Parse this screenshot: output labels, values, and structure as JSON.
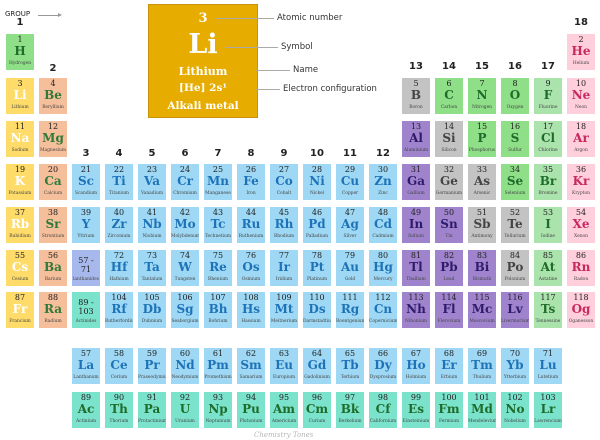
{
  "legend": {
    "group_label": "GROUP",
    "atomic_number": "3",
    "symbol": "Li",
    "name": "Lithium",
    "config": "[He] 2s¹",
    "category": "Alkali metal",
    "callouts": [
      "Atomic number",
      "Symbol",
      "Name",
      "Electron configuration"
    ]
  },
  "watermark": "Chemistry Tones",
  "categories": {
    "alkali": {
      "bg": "#ffdc6a",
      "sym": "#ffffff"
    },
    "alkaline": {
      "bg": "#f6bf9b",
      "sym": "#2f7a3a"
    },
    "transition": {
      "bg": "#9ed8f4",
      "sym": "#1e73b8"
    },
    "post": {
      "bg": "#9f84cd",
      "sym": "#2f1b6b"
    },
    "metalloid": {
      "bg": "#c3c3c3",
      "sym": "#444444"
    },
    "nonmetal": {
      "bg": "#8fdf88",
      "sym": "#1e6b2a"
    },
    "halogen": {
      "bg": "#abe3ad",
      "sym": "#1e6b2a"
    },
    "noble": {
      "bg": "#ffcfdc",
      "sym": "#c8285f"
    },
    "hydrogen": {
      "bg": "#8fdf88",
      "sym": "#1e6b2a"
    },
    "lanthanide": {
      "bg": "#9ed8f4",
      "sym": "#1e73b8"
    },
    "actinide": {
      "bg": "#7be3cc",
      "sym": "#1e6b2a"
    },
    "placeholder": {
      "bg": "#a7b9ec",
      "sym": "#1e3b8a"
    }
  },
  "groups": [
    "1",
    "2",
    "3",
    "4",
    "5",
    "6",
    "7",
    "8",
    "9",
    "10",
    "11",
    "12",
    "13",
    "14",
    "15",
    "16",
    "17",
    "18"
  ],
  "elements": [
    {
      "n": "1",
      "s": "H",
      "nm": "Hydrogen",
      "g": 1,
      "p": 1,
      "c": "hydrogen"
    },
    {
      "n": "2",
      "s": "He",
      "nm": "Helium",
      "g": 18,
      "p": 1,
      "c": "noble"
    },
    {
      "n": "3",
      "s": "Li",
      "nm": "Lithium",
      "g": 1,
      "p": 2,
      "c": "alkali"
    },
    {
      "n": "4",
      "s": "Be",
      "nm": "Beryllium",
      "g": 2,
      "p": 2,
      "c": "alkaline"
    },
    {
      "n": "5",
      "s": "B",
      "nm": "Boron",
      "g": 13,
      "p": 2,
      "c": "metalloid"
    },
    {
      "n": "6",
      "s": "C",
      "nm": "Carbon",
      "g": 14,
      "p": 2,
      "c": "nonmetal"
    },
    {
      "n": "7",
      "s": "N",
      "nm": "Nitrogen",
      "g": 15,
      "p": 2,
      "c": "nonmetal"
    },
    {
      "n": "8",
      "s": "O",
      "nm": "Oxygen",
      "g": 16,
      "p": 2,
      "c": "nonmetal"
    },
    {
      "n": "9",
      "s": "F",
      "nm": "Fluorine",
      "g": 17,
      "p": 2,
      "c": "halogen"
    },
    {
      "n": "10",
      "s": "Ne",
      "nm": "Neon",
      "g": 18,
      "p": 2,
      "c": "noble"
    },
    {
      "n": "11",
      "s": "Na",
      "nm": "Sodium",
      "g": 1,
      "p": 3,
      "c": "alkali"
    },
    {
      "n": "12",
      "s": "Mg",
      "nm": "Magnesium",
      "g": 2,
      "p": 3,
      "c": "alkaline"
    },
    {
      "n": "13",
      "s": "Al",
      "nm": "Aluminium",
      "g": 13,
      "p": 3,
      "c": "post"
    },
    {
      "n": "14",
      "s": "Si",
      "nm": "Silicon",
      "g": 14,
      "p": 3,
      "c": "metalloid"
    },
    {
      "n": "15",
      "s": "P",
      "nm": "Phosphorus",
      "g": 15,
      "p": 3,
      "c": "nonmetal"
    },
    {
      "n": "16",
      "s": "S",
      "nm": "Sulfur",
      "g": 16,
      "p": 3,
      "c": "nonmetal"
    },
    {
      "n": "17",
      "s": "Cl",
      "nm": "Chlorine",
      "g": 17,
      "p": 3,
      "c": "halogen"
    },
    {
      "n": "18",
      "s": "Ar",
      "nm": "Argon",
      "g": 18,
      "p": 3,
      "c": "noble"
    },
    {
      "n": "19",
      "s": "K",
      "nm": "Potassium",
      "g": 1,
      "p": 4,
      "c": "alkali"
    },
    {
      "n": "20",
      "s": "Ca",
      "nm": "Calcium",
      "g": 2,
      "p": 4,
      "c": "alkaline"
    },
    {
      "n": "21",
      "s": "Sc",
      "nm": "Scandium",
      "g": 3,
      "p": 4,
      "c": "transition"
    },
    {
      "n": "22",
      "s": "Ti",
      "nm": "Titanium",
      "g": 4,
      "p": 4,
      "c": "transition"
    },
    {
      "n": "23",
      "s": "Va",
      "nm": "Vanadium",
      "g": 5,
      "p": 4,
      "c": "transition"
    },
    {
      "n": "24",
      "s": "Cr",
      "nm": "Chromium",
      "g": 6,
      "p": 4,
      "c": "transition"
    },
    {
      "n": "25",
      "s": "Mn",
      "nm": "Manganese",
      "g": 7,
      "p": 4,
      "c": "transition"
    },
    {
      "n": "26",
      "s": "Fe",
      "nm": "Iron",
      "g": 8,
      "p": 4,
      "c": "transition"
    },
    {
      "n": "27",
      "s": "Co",
      "nm": "Cobalt",
      "g": 9,
      "p": 4,
      "c": "transition"
    },
    {
      "n": "28",
      "s": "Ni",
      "nm": "Nickel",
      "g": 10,
      "p": 4,
      "c": "transition"
    },
    {
      "n": "29",
      "s": "Cu",
      "nm": "Copper",
      "g": 11,
      "p": 4,
      "c": "transition"
    },
    {
      "n": "30",
      "s": "Zn",
      "nm": "Zinc",
      "g": 12,
      "p": 4,
      "c": "transition"
    },
    {
      "n": "31",
      "s": "Ga",
      "nm": "Gallium",
      "g": 13,
      "p": 4,
      "c": "post"
    },
    {
      "n": "32",
      "s": "Ge",
      "nm": "Germanium",
      "g": 14,
      "p": 4,
      "c": "metalloid"
    },
    {
      "n": "33",
      "s": "As",
      "nm": "Arsenic",
      "g": 15,
      "p": 4,
      "c": "metalloid"
    },
    {
      "n": "34",
      "s": "Se",
      "nm": "Selenium",
      "g": 16,
      "p": 4,
      "c": "nonmetal"
    },
    {
      "n": "35",
      "s": "Br",
      "nm": "Bromine",
      "g": 17,
      "p": 4,
      "c": "halogen"
    },
    {
      "n": "36",
      "s": "Kr",
      "nm": "Krypton",
      "g": 18,
      "p": 4,
      "c": "noble"
    },
    {
      "n": "37",
      "s": "Rb",
      "nm": "Rubidium",
      "g": 1,
      "p": 5,
      "c": "alkali"
    },
    {
      "n": "38",
      "s": "Sr",
      "nm": "Strontium",
      "g": 2,
      "p": 5,
      "c": "alkaline"
    },
    {
      "n": "39",
      "s": "Y",
      "nm": "Yttrium",
      "g": 3,
      "p": 5,
      "c": "transition"
    },
    {
      "n": "40",
      "s": "Zr",
      "nm": "Zirconium",
      "g": 4,
      "p": 5,
      "c": "transition"
    },
    {
      "n": "41",
      "s": "Nb",
      "nm": "Niobium",
      "g": 5,
      "p": 5,
      "c": "transition"
    },
    {
      "n": "42",
      "s": "Mo",
      "nm": "Molybdenum",
      "g": 6,
      "p": 5,
      "c": "transition"
    },
    {
      "n": "43",
      "s": "Tc",
      "nm": "Technetium",
      "g": 7,
      "p": 5,
      "c": "transition"
    },
    {
      "n": "44",
      "s": "Ru",
      "nm": "Ruthenium",
      "g": 8,
      "p": 5,
      "c": "transition"
    },
    {
      "n": "45",
      "s": "Rh",
      "nm": "Rhodium",
      "g": 9,
      "p": 5,
      "c": "transition"
    },
    {
      "n": "46",
      "s": "Pd",
      "nm": "Palladium",
      "g": 10,
      "p": 5,
      "c": "transition"
    },
    {
      "n": "47",
      "s": "Ag",
      "nm": "Silver",
      "g": 11,
      "p": 5,
      "c": "transition"
    },
    {
      "n": "48",
      "s": "Cd",
      "nm": "Cadmium",
      "g": 12,
      "p": 5,
      "c": "transition"
    },
    {
      "n": "49",
      "s": "In",
      "nm": "Indium",
      "g": 13,
      "p": 5,
      "c": "post"
    },
    {
      "n": "50",
      "s": "Sn",
      "nm": "Tin",
      "g": 14,
      "p": 5,
      "c": "post"
    },
    {
      "n": "51",
      "s": "Sb",
      "nm": "Antimony",
      "g": 15,
      "p": 5,
      "c": "metalloid"
    },
    {
      "n": "52",
      "s": "Te",
      "nm": "Tellurium",
      "g": 16,
      "p": 5,
      "c": "metalloid"
    },
    {
      "n": "53",
      "s": "I",
      "nm": "Iodine",
      "g": 17,
      "p": 5,
      "c": "halogen"
    },
    {
      "n": "54",
      "s": "Xe",
      "nm": "Xenon",
      "g": 18,
      "p": 5,
      "c": "noble"
    },
    {
      "n": "55",
      "s": "Cs",
      "nm": "Cesium",
      "g": 1,
      "p": 6,
      "c": "alkali"
    },
    {
      "n": "56",
      "s": "Ba",
      "nm": "Barium",
      "g": 2,
      "p": 6,
      "c": "alkaline"
    },
    {
      "n": "57 - 71",
      "s": "",
      "nm": "lanthanides",
      "g": 3,
      "p": 6,
      "c": "placeholder"
    },
    {
      "n": "72",
      "s": "Hf",
      "nm": "Hafnium",
      "g": 4,
      "p": 6,
      "c": "transition"
    },
    {
      "n": "73",
      "s": "Ta",
      "nm": "Tantalum",
      "g": 5,
      "p": 6,
      "c": "transition"
    },
    {
      "n": "74",
      "s": "W",
      "nm": "Tungsten",
      "g": 6,
      "p": 6,
      "c": "transition"
    },
    {
      "n": "75",
      "s": "Re",
      "nm": "Rhenium",
      "g": 7,
      "p": 6,
      "c": "transition"
    },
    {
      "n": "76",
      "s": "Os",
      "nm": "Osmium",
      "g": 8,
      "p": 6,
      "c": "transition"
    },
    {
      "n": "77",
      "s": "Ir",
      "nm": "Iridium",
      "g": 9,
      "p": 6,
      "c": "transition"
    },
    {
      "n": "78",
      "s": "Pt",
      "nm": "Platinum",
      "g": 10,
      "p": 6,
      "c": "transition"
    },
    {
      "n": "79",
      "s": "Au",
      "nm": "Gold",
      "g": 11,
      "p": 6,
      "c": "transition"
    },
    {
      "n": "80",
      "s": "Hg",
      "nm": "Mercury",
      "g": 12,
      "p": 6,
      "c": "transition"
    },
    {
      "n": "81",
      "s": "Tl",
      "nm": "Thallium",
      "g": 13,
      "p": 6,
      "c": "post"
    },
    {
      "n": "82",
      "s": "Pb",
      "nm": "Lead",
      "g": 14,
      "p": 6,
      "c": "post"
    },
    {
      "n": "83",
      "s": "Bi",
      "nm": "Bismuth",
      "g": 15,
      "p": 6,
      "c": "post"
    },
    {
      "n": "84",
      "s": "Po",
      "nm": "Polonium",
      "g": 16,
      "p": 6,
      "c": "metalloid"
    },
    {
      "n": "85",
      "s": "At",
      "nm": "Astatine",
      "g": 17,
      "p": 6,
      "c": "halogen"
    },
    {
      "n": "86",
      "s": "Rn",
      "nm": "Radon",
      "g": 18,
      "p": 6,
      "c": "noble"
    },
    {
      "n": "87",
      "s": "Fr",
      "nm": "Francium",
      "g": 1,
      "p": 7,
      "c": "alkali"
    },
    {
      "n": "88",
      "s": "Ra",
      "nm": "Radium",
      "g": 2,
      "p": 7,
      "c": "alkaline"
    },
    {
      "n": "89 - 103",
      "s": "",
      "nm": "Actinides",
      "g": 3,
      "p": 7,
      "c": "actinide"
    },
    {
      "n": "104",
      "s": "Rf",
      "nm": "Rutherfordium",
      "g": 4,
      "p": 7,
      "c": "transition"
    },
    {
      "n": "105",
      "s": "Db",
      "nm": "Dubnium",
      "g": 5,
      "p": 7,
      "c": "transition"
    },
    {
      "n": "106",
      "s": "Sg",
      "nm": "Seaborgium",
      "g": 6,
      "p": 7,
      "c": "transition"
    },
    {
      "n": "107",
      "s": "Bh",
      "nm": "Bohrium",
      "g": 7,
      "p": 7,
      "c": "transition"
    },
    {
      "n": "108",
      "s": "Hs",
      "nm": "Hassium",
      "g": 8,
      "p": 7,
      "c": "transition"
    },
    {
      "n": "109",
      "s": "Mt",
      "nm": "Meitnerium",
      "g": 9,
      "p": 7,
      "c": "transition"
    },
    {
      "n": "110",
      "s": "Ds",
      "nm": "Darmstadtium",
      "g": 10,
      "p": 7,
      "c": "transition"
    },
    {
      "n": "111",
      "s": "Rg",
      "nm": "Roentgenium",
      "g": 11,
      "p": 7,
      "c": "transition"
    },
    {
      "n": "112",
      "s": "Cn",
      "nm": "Copernicium",
      "g": 12,
      "p": 7,
      "c": "transition"
    },
    {
      "n": "113",
      "s": "Nh",
      "nm": "Nihonium",
      "g": 13,
      "p": 7,
      "c": "post"
    },
    {
      "n": "114",
      "s": "Fl",
      "nm": "Flerovium",
      "g": 14,
      "p": 7,
      "c": "post"
    },
    {
      "n": "115",
      "s": "Mc",
      "nm": "Moscovium",
      "g": 15,
      "p": 7,
      "c": "post"
    },
    {
      "n": "116",
      "s": "Lv",
      "nm": "Livermorium",
      "g": 16,
      "p": 7,
      "c": "post"
    },
    {
      "n": "117",
      "s": "Ts",
      "nm": "Tennessine",
      "g": 17,
      "p": 7,
      "c": "halogen"
    },
    {
      "n": "118",
      "s": "Og",
      "nm": "Oganesson",
      "g": 18,
      "p": 7,
      "c": "noble"
    },
    {
      "n": "57",
      "s": "La",
      "nm": "Lanthanum",
      "g": 3,
      "p": 9,
      "c": "lanthanide"
    },
    {
      "n": "58",
      "s": "Ce",
      "nm": "Cerium",
      "g": 4,
      "p": 9,
      "c": "lanthanide"
    },
    {
      "n": "59",
      "s": "Pr",
      "nm": "Praseodymium",
      "g": 5,
      "p": 9,
      "c": "lanthanide"
    },
    {
      "n": "60",
      "s": "Nd",
      "nm": "Neodymium",
      "g": 6,
      "p": 9,
      "c": "lanthanide"
    },
    {
      "n": "61",
      "s": "Pm",
      "nm": "Promethium",
      "g": 7,
      "p": 9,
      "c": "lanthanide"
    },
    {
      "n": "62",
      "s": "Sm",
      "nm": "Samarium",
      "g": 8,
      "p": 9,
      "c": "lanthanide"
    },
    {
      "n": "63",
      "s": "Eu",
      "nm": "Europium",
      "g": 9,
      "p": 9,
      "c": "lanthanide"
    },
    {
      "n": "64",
      "s": "Gd",
      "nm": "Gadolinium",
      "g": 10,
      "p": 9,
      "c": "lanthanide"
    },
    {
      "n": "65",
      "s": "Tb",
      "nm": "Terbium",
      "g": 11,
      "p": 9,
      "c": "lanthanide"
    },
    {
      "n": "66",
      "s": "Dy",
      "nm": "Dysprosium",
      "g": 12,
      "p": 9,
      "c": "lanthanide"
    },
    {
      "n": "67",
      "s": "Ho",
      "nm": "Holmium",
      "g": 13,
      "p": 9,
      "c": "lanthanide"
    },
    {
      "n": "68",
      "s": "Er",
      "nm": "Erbium",
      "g": 14,
      "p": 9,
      "c": "lanthanide"
    },
    {
      "n": "69",
      "s": "Tm",
      "nm": "Thulium",
      "g": 15,
      "p": 9,
      "c": "lanthanide"
    },
    {
      "n": "70",
      "s": "Yb",
      "nm": "Ytterbium",
      "g": 16,
      "p": 9,
      "c": "lanthanide"
    },
    {
      "n": "71",
      "s": "Lu",
      "nm": "Lutetium",
      "g": 17,
      "p": 9,
      "c": "lanthanide"
    },
    {
      "n": "89",
      "s": "Ac",
      "nm": "Actinium",
      "g": 3,
      "p": 10,
      "c": "actinide"
    },
    {
      "n": "90",
      "s": "Th",
      "nm": "Thorium",
      "g": 4,
      "p": 10,
      "c": "actinide"
    },
    {
      "n": "91",
      "s": "Pa",
      "nm": "Protactinium",
      "g": 5,
      "p": 10,
      "c": "actinide"
    },
    {
      "n": "92",
      "s": "U",
      "nm": "Uranium",
      "g": 6,
      "p": 10,
      "c": "actinide"
    },
    {
      "n": "93",
      "s": "Np",
      "nm": "Neptunium",
      "g": 7,
      "p": 10,
      "c": "actinide"
    },
    {
      "n": "94",
      "s": "Pu",
      "nm": "Plutonium",
      "g": 8,
      "p": 10,
      "c": "actinide"
    },
    {
      "n": "95",
      "s": "Am",
      "nm": "Americium",
      "g": 9,
      "p": 10,
      "c": "actinide"
    },
    {
      "n": "96",
      "s": "Cm",
      "nm": "Curium",
      "g": 10,
      "p": 10,
      "c": "actinide"
    },
    {
      "n": "97",
      "s": "Bk",
      "nm": "Berkelium",
      "g": 11,
      "p": 10,
      "c": "actinide"
    },
    {
      "n": "98",
      "s": "Cf",
      "nm": "Californium",
      "g": 12,
      "p": 10,
      "c": "actinide"
    },
    {
      "n": "99",
      "s": "Es",
      "nm": "Einsteinium",
      "g": 13,
      "p": 10,
      "c": "actinide"
    },
    {
      "n": "100",
      "s": "Fm",
      "nm": "Fermium",
      "g": 14,
      "p": 10,
      "c": "actinide"
    },
    {
      "n": "101",
      "s": "Md",
      "nm": "Mendelevium",
      "g": 15,
      "p": 10,
      "c": "actinide"
    },
    {
      "n": "102",
      "s": "No",
      "nm": "Nobelium",
      "g": 16,
      "p": 10,
      "c": "actinide"
    },
    {
      "n": "103",
      "s": "Lr",
      "nm": "Lawrencium",
      "g": 17,
      "p": 10,
      "c": "actinide"
    }
  ]
}
